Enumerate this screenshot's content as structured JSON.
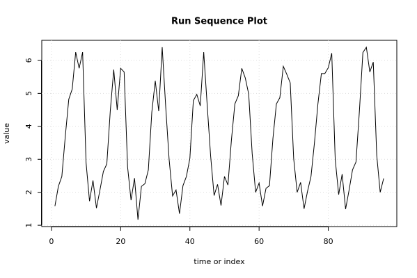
{
  "chart_data": {
    "type": "line",
    "title": "Run Sequence Plot",
    "x_label": "time or index",
    "y_label": "value",
    "x": [
      1,
      2,
      3,
      4,
      5,
      6,
      7,
      8,
      9,
      10,
      11,
      12,
      13,
      14,
      15,
      16,
      17,
      18,
      19,
      20,
      21,
      22,
      23,
      24,
      25,
      26,
      27,
      28,
      29,
      30,
      31,
      32,
      33,
      34,
      35,
      36,
      37,
      38,
      39,
      40,
      41,
      42,
      43,
      44,
      45,
      46,
      47,
      48,
      49,
      50,
      51,
      52,
      53,
      54,
      55,
      56,
      57,
      58,
      59,
      60,
      61,
      62,
      63,
      64,
      65,
      66,
      67,
      68,
      69,
      70,
      71,
      72,
      73,
      74,
      75,
      76,
      77,
      78,
      79,
      80,
      81,
      82,
      83,
      84,
      85,
      86,
      87,
      88,
      89,
      90,
      91,
      92,
      93,
      94,
      95,
      96
    ],
    "series": [
      {
        "color": "#000000",
        "values": [
          1.58,
          2.18,
          2.48,
          3.7,
          4.82,
          5.13,
          6.25,
          5.76,
          6.25,
          2.9,
          1.73,
          2.36,
          1.52,
          2.06,
          2.63,
          2.86,
          4.47,
          5.72,
          4.5,
          5.76,
          5.65,
          2.77,
          1.76,
          2.43,
          1.17,
          2.18,
          2.26,
          2.68,
          4.43,
          5.38,
          4.46,
          6.4,
          4.62,
          3.0,
          1.89,
          2.07,
          1.35,
          2.2,
          2.48,
          3.03,
          4.78,
          4.97,
          4.62,
          6.25,
          4.65,
          3.1,
          1.9,
          2.24,
          1.6,
          2.48,
          2.22,
          3.58,
          4.68,
          4.93,
          5.76,
          5.47,
          4.98,
          3.18,
          2.0,
          2.28,
          1.58,
          2.12,
          2.2,
          3.63,
          4.68,
          4.87,
          5.82,
          5.58,
          5.32,
          3.02,
          2.0,
          2.3,
          1.5,
          2.03,
          2.48,
          3.5,
          4.68,
          5.6,
          5.6,
          5.78,
          6.22,
          3.0,
          1.93,
          2.55,
          1.49,
          2.06,
          2.68,
          2.92,
          4.48,
          6.24,
          6.4,
          5.65,
          5.95,
          3.12,
          2.0,
          2.42
        ]
      }
    ],
    "xlim": [
      -2.8,
      99.8
    ],
    "ylim": [
      0.96,
      6.61
    ],
    "xticks": [
      0,
      20,
      40,
      60,
      80
    ],
    "yticks": [
      1,
      2,
      3,
      4,
      5,
      6
    ],
    "grid": true
  }
}
